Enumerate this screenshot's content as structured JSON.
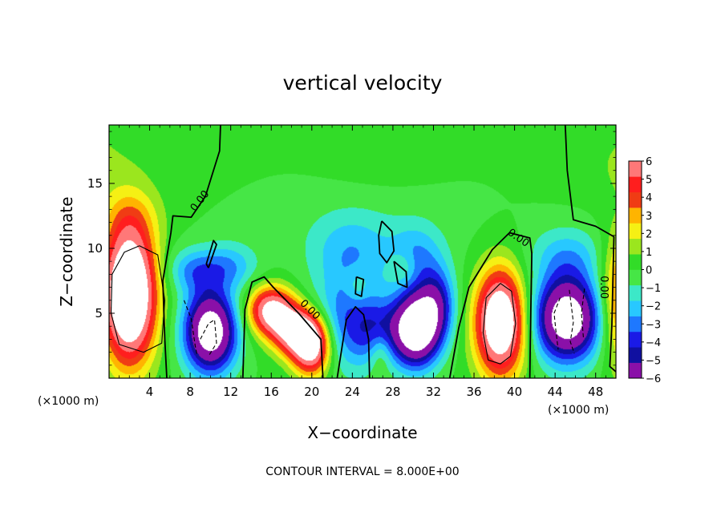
{
  "chart_data": {
    "type": "heatmap",
    "title": "vertical velocity",
    "xlabel": "X−coordinate",
    "ylabel": "Z−coordinate",
    "x_unit_left": "(×1000 m)",
    "x_unit_right": "(×1000 m)",
    "footer": "CONTOUR INTERVAL = 8.000E+00",
    "xlim": [
      0,
      50
    ],
    "ylim": [
      0,
      19.5
    ],
    "x_ticks": [
      4,
      8,
      12,
      16,
      20,
      24,
      28,
      32,
      36,
      40,
      44,
      48
    ],
    "y_ticks": [
      5,
      10,
      15
    ],
    "zero_contour_label": "0.00",
    "colorbar": {
      "min": -6,
      "max": 6,
      "ticks": [
        6,
        5,
        4,
        3,
        2,
        1,
        0,
        -1,
        -2,
        -3,
        -4,
        -5,
        -6
      ],
      "colors": [
        "#8a10a8",
        "#1010a0",
        "#1a1ae6",
        "#1e78ff",
        "#28c8ff",
        "#3ce8c8",
        "#46e646",
        "#32dc28",
        "#9be61e",
        "#f5f014",
        "#ffb400",
        "#f03c14",
        "#ff1e1e",
        "#ff7878"
      ]
    },
    "cells": [
      {
        "x": 2,
        "z": 6,
        "w": 1.1,
        "rise": 6.5
      },
      {
        "x": 11,
        "z": 6,
        "w": 1.5,
        "rise": 3.5
      },
      {
        "x": 17,
        "z": 3,
        "w": 3,
        "rise": 3
      },
      {
        "x": 22.5,
        "z": 3,
        "w": 3,
        "rise": 3
      },
      {
        "x": 38.7,
        "z": 4,
        "w": 1.2,
        "rise": 4
      }
    ],
    "bands": [
      {
        "x": 4.5,
        "z": 6,
        "w": 1.1,
        "rise": 6.5
      },
      {
        "x": 8.5,
        "z": 4,
        "w": 1.3,
        "rise": 3.2
      },
      {
        "x": 29.5,
        "z": 4,
        "w": 1.5,
        "rise": 4
      },
      {
        "x": 45.5,
        "z": 4.5,
        "w": 2.3,
        "rise": 3.5
      }
    ],
    "contours": [
      {
        "style": "solid",
        "points": [
          [
            3,
            10.2
          ],
          [
            4.8,
            9.5
          ],
          [
            5.5,
            6
          ],
          [
            5.2,
            2.7
          ],
          [
            3.4,
            2
          ],
          [
            1,
            2.6
          ],
          [
            0.2,
            5
          ],
          [
            0.3,
            8
          ],
          [
            1.5,
            9.7
          ],
          [
            3,
            10.2
          ]
        ]
      },
      {
        "style": "solid",
        "points": [
          [
            38.6,
            7.3
          ],
          [
            39.7,
            6.7
          ],
          [
            40.1,
            4.2
          ],
          [
            39.6,
            1.7
          ],
          [
            38.6,
            1.1
          ],
          [
            37.4,
            1.4
          ],
          [
            36.9,
            3.5
          ],
          [
            37.2,
            6.2
          ],
          [
            38.6,
            7.3
          ]
        ]
      },
      {
        "style": "dashed",
        "points": [
          [
            7.4,
            6
          ],
          [
            8.1,
            4.6
          ],
          [
            8.5,
            2.5
          ],
          [
            8.7,
            1.7
          ]
        ]
      },
      {
        "style": "dashed",
        "points": [
          [
            9,
            3
          ],
          [
            9.8,
            4.2
          ],
          [
            10.4,
            4.5
          ],
          [
            10.6,
            2.7
          ],
          [
            9.9,
            1.8
          ]
        ]
      },
      {
        "style": "dashed",
        "points": [
          [
            44.5,
            6.2
          ],
          [
            43.9,
            5
          ],
          [
            44.1,
            3.5
          ],
          [
            44.3,
            2.2
          ]
        ]
      },
      {
        "style": "dashed",
        "points": [
          [
            45.4,
            6.8
          ],
          [
            45.8,
            4.3
          ],
          [
            45.5,
            2.8
          ],
          [
            45.9,
            1.9
          ]
        ]
      },
      {
        "style": "dashed",
        "points": [
          [
            46.9,
            6.9
          ],
          [
            46.6,
            5
          ],
          [
            46.8,
            3
          ]
        ]
      },
      {
        "style": "thick",
        "points": [
          [
            11,
            19.5
          ],
          [
            10.9,
            17.5
          ],
          [
            9.5,
            14
          ],
          [
            8.1,
            12.4
          ],
          [
            6.3,
            12.5
          ],
          [
            6.1,
            11.2
          ],
          [
            5.3,
            7.5
          ],
          [
            5.5,
            3
          ],
          [
            5.7,
            0
          ]
        ]
      },
      {
        "style": "thick",
        "points": [
          [
            13.2,
            0
          ],
          [
            13.4,
            5.3
          ],
          [
            14.1,
            7.4
          ],
          [
            15.3,
            7.8
          ],
          [
            16.2,
            7
          ],
          [
            18.7,
            5
          ],
          [
            20.9,
            3
          ],
          [
            21.1,
            0
          ]
        ]
      },
      {
        "style": "thick",
        "points": [
          [
            22.5,
            0
          ],
          [
            23.4,
            4.5
          ],
          [
            24.3,
            5.5
          ],
          [
            25.1,
            4.9
          ],
          [
            25.6,
            3
          ],
          [
            25.7,
            0
          ]
        ]
      },
      {
        "style": "thick",
        "points": [
          [
            33.6,
            0
          ],
          [
            34.5,
            3.9
          ],
          [
            35.5,
            7
          ],
          [
            37.8,
            9.9
          ],
          [
            39.5,
            11.2
          ],
          [
            41.5,
            10.8
          ],
          [
            41.7,
            9.6
          ],
          [
            41.6,
            5
          ],
          [
            41.5,
            0
          ]
        ]
      },
      {
        "style": "thick",
        "points": [
          [
            45,
            19.5
          ],
          [
            45.2,
            16
          ],
          [
            45.8,
            12.2
          ],
          [
            48,
            11.7
          ],
          [
            49.8,
            10.9
          ],
          [
            49.6,
            4
          ],
          [
            49.4,
            0.9
          ],
          [
            50,
            0.5
          ]
        ]
      },
      {
        "style": "thick",
        "points": [
          [
            9.8,
            8.5
          ],
          [
            10.6,
            10.3
          ],
          [
            10.3,
            10.6
          ],
          [
            9.6,
            8.8
          ],
          [
            9.8,
            8.5
          ]
        ]
      },
      {
        "style": "thick",
        "points": [
          [
            26.9,
            12.1
          ],
          [
            27.9,
            11.3
          ],
          [
            28.1,
            9.8
          ],
          [
            27.4,
            8.9
          ],
          [
            26.7,
            9.6
          ],
          [
            26.6,
            11
          ],
          [
            26.9,
            12.1
          ]
        ]
      },
      {
        "style": "thick",
        "points": [
          [
            24.4,
            7.8
          ],
          [
            25.1,
            7.6
          ],
          [
            24.9,
            6.3
          ],
          [
            24.3,
            6.5
          ],
          [
            24.4,
            7.8
          ]
        ]
      },
      {
        "style": "thick",
        "points": [
          [
            28.1,
            9
          ],
          [
            29.3,
            8.2
          ],
          [
            29.4,
            7
          ],
          [
            28.5,
            7.3
          ],
          [
            28.1,
            9
          ]
        ]
      }
    ]
  }
}
